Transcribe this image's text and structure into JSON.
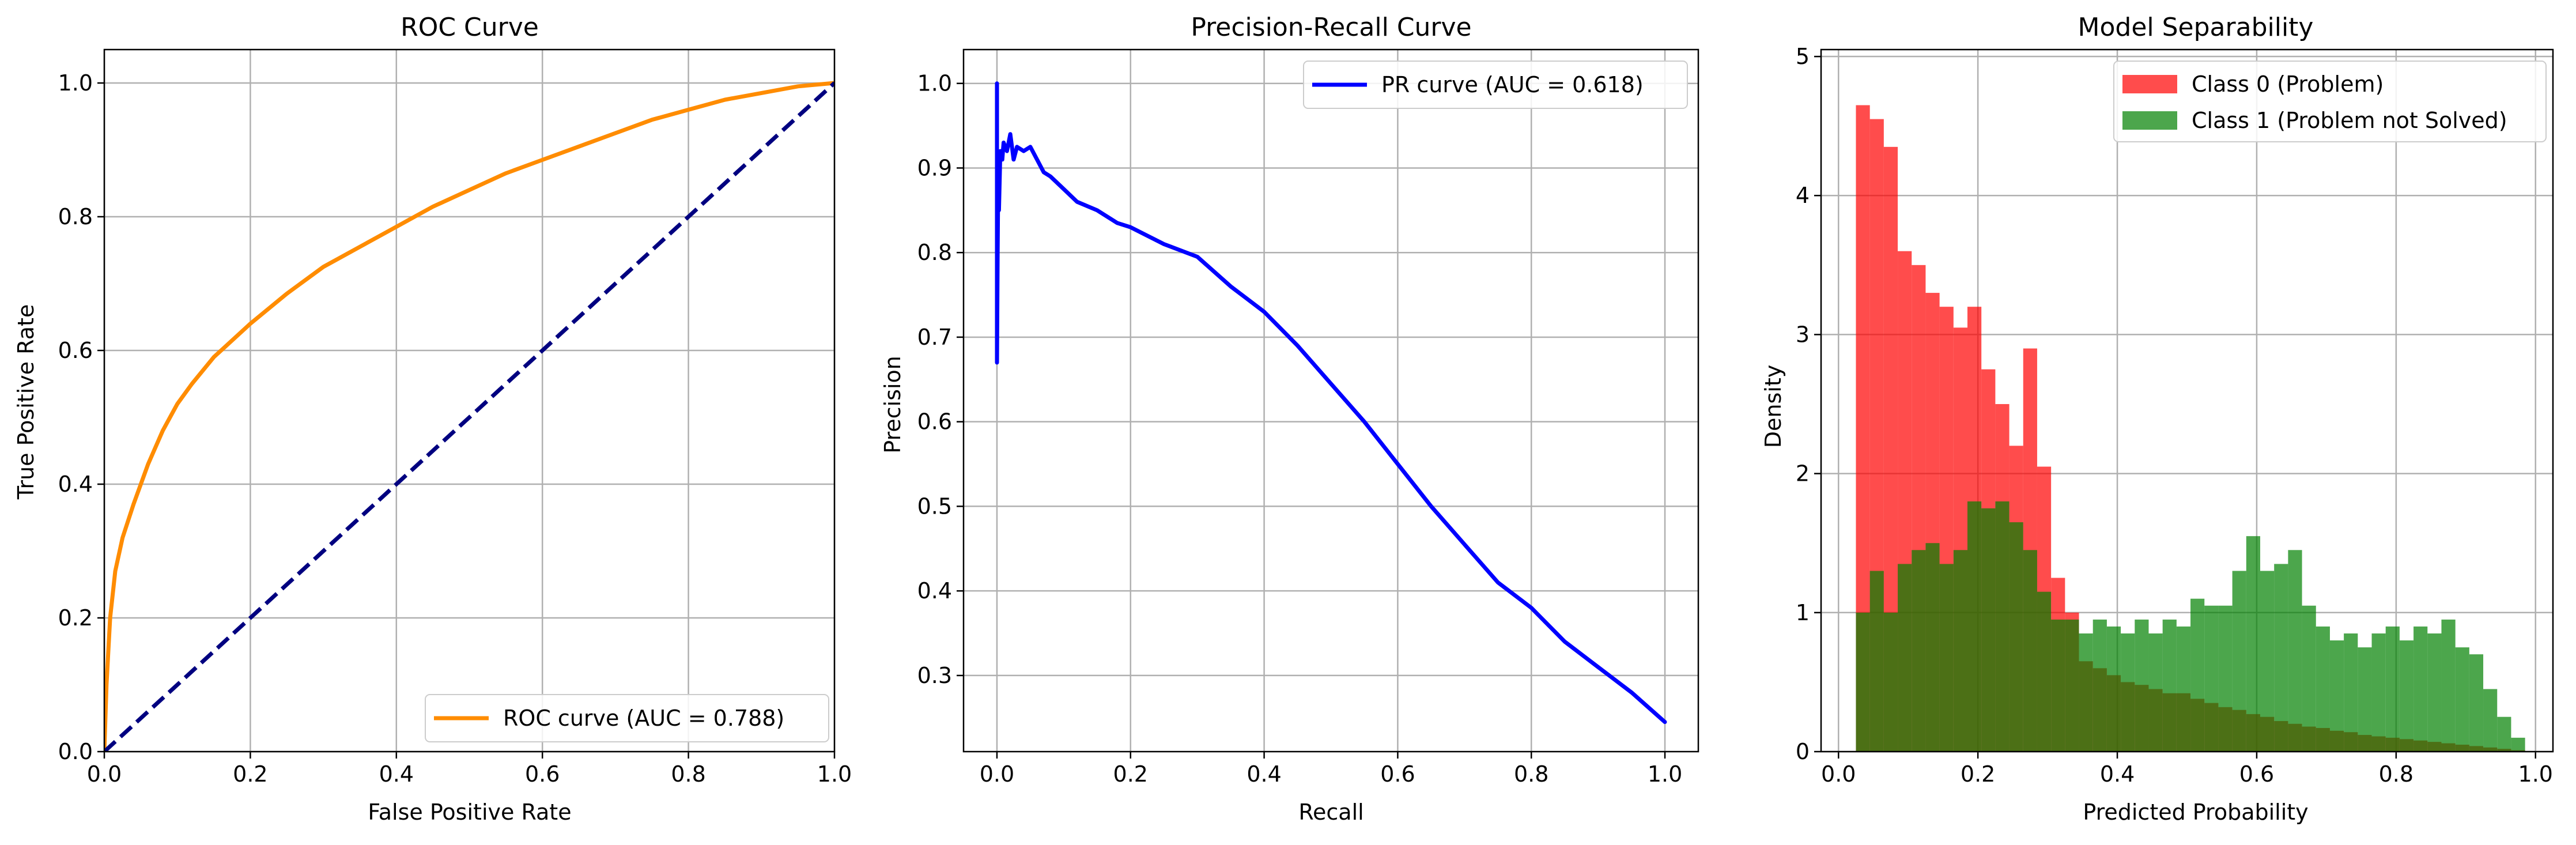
{
  "figure": {
    "panels": [
      {
        "title": "ROC Curve",
        "xlabel": "False Positive Rate",
        "ylabel": "True Positive Rate",
        "xticks": [
          "0.0",
          "0.2",
          "0.4",
          "0.6",
          "0.8",
          "1.0"
        ],
        "yticks": [
          "0.0",
          "0.2",
          "0.4",
          "0.6",
          "0.8",
          "1.0"
        ],
        "legend": [
          "ROC curve (AUC = 0.788)"
        ]
      },
      {
        "title": "Precision-Recall Curve",
        "xlabel": "Recall",
        "ylabel": "Precision",
        "xticks": [
          "0.0",
          "0.2",
          "0.4",
          "0.6",
          "0.8",
          "1.0"
        ],
        "yticks": [
          "0.3",
          "0.4",
          "0.5",
          "0.6",
          "0.7",
          "0.8",
          "0.9",
          "1.0"
        ],
        "legend": [
          "PR curve (AUC = 0.618)"
        ]
      },
      {
        "title": "Model Separability",
        "xlabel": "Predicted Probability",
        "ylabel": "Density",
        "xticks": [
          "0.0",
          "0.2",
          "0.4",
          "0.6",
          "0.8",
          "1.0"
        ],
        "yticks": [
          "0",
          "1",
          "2",
          "3",
          "4",
          "5"
        ],
        "legend": [
          "Class 0 (Problem)",
          "Class 1 (Problem not Solved)"
        ]
      }
    ]
  },
  "chart_data": [
    {
      "type": "line",
      "title": "ROC Curve",
      "xlabel": "False Positive Rate",
      "ylabel": "True Positive Rate",
      "xlim": [
        0,
        1
      ],
      "ylim": [
        0,
        1.05
      ],
      "grid": true,
      "legend_position": "lower-right",
      "series": [
        {
          "name": "ROC curve (AUC = 0.788)",
          "color": "#ff8c00",
          "style": "solid",
          "x": [
            0,
            0.003,
            0.008,
            0.015,
            0.025,
            0.04,
            0.06,
            0.08,
            0.1,
            0.12,
            0.15,
            0.2,
            0.25,
            0.3,
            0.35,
            0.4,
            0.45,
            0.5,
            0.55,
            0.6,
            0.65,
            0.7,
            0.75,
            0.8,
            0.85,
            0.9,
            0.95,
            1.0
          ],
          "y": [
            0,
            0.1,
            0.2,
            0.27,
            0.32,
            0.37,
            0.43,
            0.48,
            0.52,
            0.55,
            0.59,
            0.64,
            0.685,
            0.725,
            0.755,
            0.785,
            0.815,
            0.84,
            0.865,
            0.885,
            0.905,
            0.925,
            0.945,
            0.96,
            0.975,
            0.985,
            0.995,
            1.0
          ]
        },
        {
          "name": "",
          "color": "#000080",
          "style": "dashed",
          "x": [
            0,
            1
          ],
          "y": [
            0,
            1
          ]
        }
      ]
    },
    {
      "type": "line",
      "title": "Precision-Recall Curve",
      "xlabel": "Recall",
      "ylabel": "Precision",
      "xlim": [
        -0.05,
        1.05
      ],
      "ylim": [
        0.21,
        1.04
      ],
      "grid": true,
      "legend_position": "top-right",
      "series": [
        {
          "name": "PR curve (AUC = 0.618)",
          "color": "#0000ff",
          "style": "solid",
          "x": [
            0,
            0.0,
            0.001,
            0.002,
            0.003,
            0.005,
            0.008,
            0.01,
            0.015,
            0.02,
            0.025,
            0.03,
            0.04,
            0.05,
            0.06,
            0.07,
            0.08,
            0.1,
            0.12,
            0.15,
            0.18,
            0.2,
            0.25,
            0.3,
            0.35,
            0.4,
            0.45,
            0.5,
            0.55,
            0.6,
            0.65,
            0.7,
            0.75,
            0.8,
            0.85,
            0.9,
            0.95,
            1.0
          ],
          "y": [
            1.0,
            0.67,
            0.8,
            0.9,
            0.85,
            0.92,
            0.91,
            0.93,
            0.92,
            0.94,
            0.91,
            0.925,
            0.92,
            0.925,
            0.91,
            0.895,
            0.89,
            0.875,
            0.86,
            0.85,
            0.835,
            0.83,
            0.81,
            0.795,
            0.76,
            0.73,
            0.69,
            0.645,
            0.6,
            0.55,
            0.5,
            0.455,
            0.41,
            0.38,
            0.34,
            0.31,
            0.28,
            0.245
          ]
        }
      ]
    },
    {
      "type": "bar",
      "subtype": "histogram",
      "title": "Model Separability",
      "xlabel": "Predicted Probability",
      "ylabel": "Density",
      "xlim": [
        -0.025,
        1.025
      ],
      "ylim": [
        0,
        5.05
      ],
      "grid": true,
      "legend_position": "top-right",
      "bin_start": 0.025,
      "bin_width": 0.02,
      "series": [
        {
          "name": "Class 0 (Problem)",
          "color": "#ff0000",
          "alpha": 0.7,
          "values": [
            4.65,
            4.55,
            4.35,
            3.6,
            3.5,
            3.3,
            3.2,
            3.05,
            3.2,
            2.75,
            2.5,
            2.2,
            2.9,
            2.05,
            1.25,
            1.0,
            0.65,
            0.6,
            0.55,
            0.5,
            0.48,
            0.45,
            0.42,
            0.42,
            0.38,
            0.35,
            0.32,
            0.3,
            0.27,
            0.25,
            0.22,
            0.2,
            0.18,
            0.17,
            0.15,
            0.14,
            0.12,
            0.11,
            0.1,
            0.09,
            0.08,
            0.07,
            0.06,
            0.05,
            0.04,
            0.03,
            0.02,
            0.01
          ]
        },
        {
          "name": "Class 1 (Problem not Solved)",
          "color": "#008000",
          "alpha": 0.7,
          "values": [
            1.0,
            1.3,
            1.0,
            1.35,
            1.45,
            1.5,
            1.35,
            1.45,
            1.8,
            1.75,
            1.8,
            1.65,
            1.45,
            1.15,
            0.95,
            0.95,
            0.85,
            0.95,
            0.9,
            0.85,
            0.95,
            0.85,
            0.95,
            0.9,
            1.1,
            1.05,
            1.05,
            1.3,
            1.55,
            1.3,
            1.35,
            1.45,
            1.05,
            0.9,
            0.8,
            0.85,
            0.75,
            0.85,
            0.9,
            0.8,
            0.9,
            0.85,
            0.95,
            0.75,
            0.7,
            0.45,
            0.25,
            0.1
          ]
        }
      ]
    }
  ]
}
